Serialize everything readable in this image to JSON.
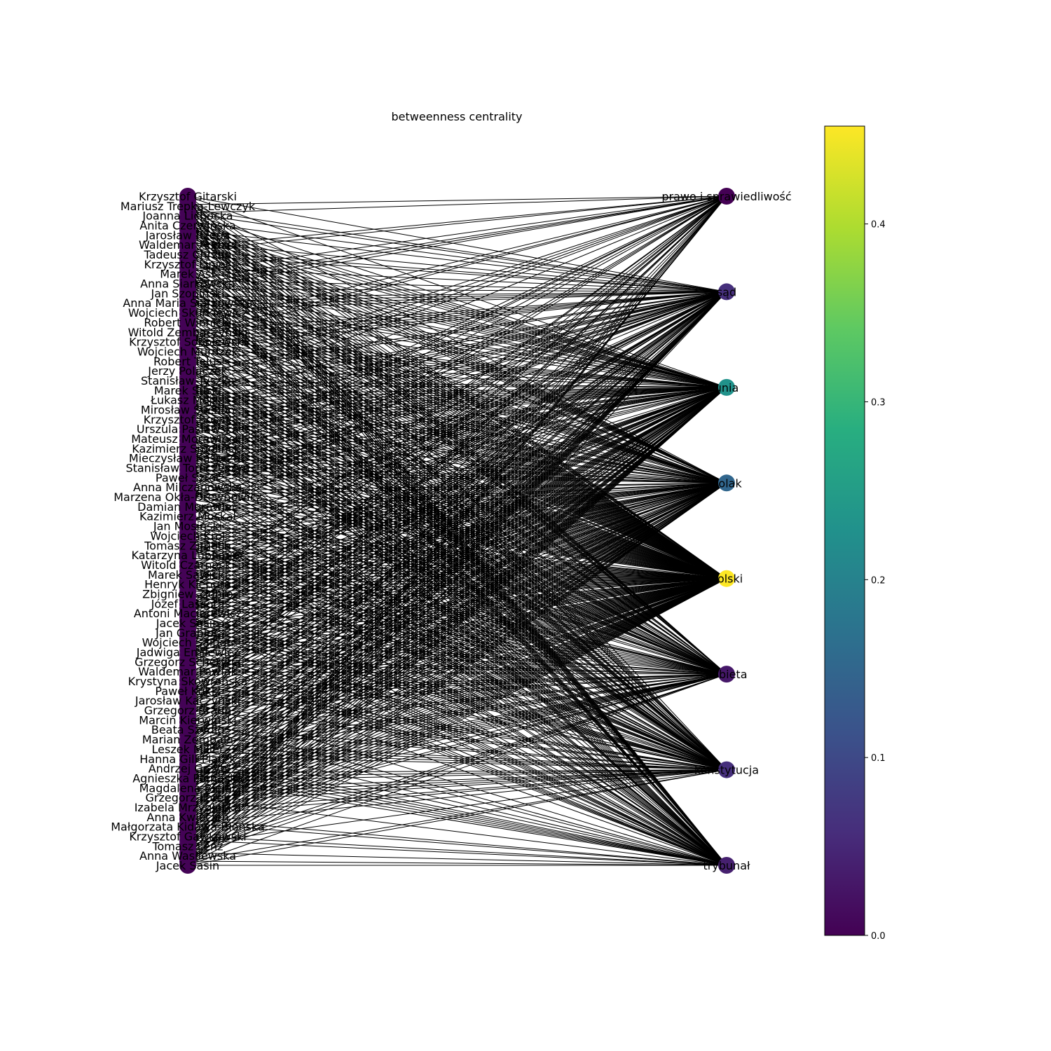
{
  "title": "betweenness centrality",
  "colorbar": {
    "min": 0.0,
    "max": 0.455,
    "ticks": [
      0.0,
      0.1,
      0.2,
      0.3,
      0.4
    ],
    "tick_labels": [
      "0.0",
      "0.1",
      "0.2",
      "0.3",
      "0.4"
    ],
    "colormap": "viridis",
    "stops": [
      "#440154",
      "#472d7b",
      "#3b528b",
      "#2c728e",
      "#21918c",
      "#28ae80",
      "#5ec962",
      "#addc30",
      "#fde725"
    ]
  },
  "topic_nodes": [
    {
      "label": "prawo i sprawiedliwość",
      "value": 0.0
    },
    {
      "label": "sąd",
      "value": 0.06
    },
    {
      "label": "unia",
      "value": 0.23
    },
    {
      "label": "polak",
      "value": 0.15
    },
    {
      "label": "polski",
      "value": 0.455
    },
    {
      "label": "kobieta",
      "value": 0.03
    },
    {
      "label": "konstytucja",
      "value": 0.06
    },
    {
      "label": "trybunał",
      "value": 0.04
    }
  ],
  "person_nodes_visible_labels": [
    "Krzysztof Gitarski",
    "Mariusz Trepka-Lewczyk",
    "Joanna Lichocka",
    "Anita Czerwińska",
    "Jarosław Rzepa",
    "Waldemar Andzel",
    "Tadeusz Chrzan",
    "Krzysztof Lipiec",
    "Marek Ast",
    "Anna Siarkowska",
    "Jan Szopiński",
    "Anna Maria Siarkowska",
    "Wojciech Skurkiewicz",
    "Robert Winnicki",
    "Witold Zembaczyński",
    "Krzysztof Sobolewski",
    "Wojciech Murdzek",
    "Robert Telus",
    "Jerzy Polaczek",
    "Stanisław Tyszka",
    "Marek Suski",
    "Łukasz Mejza",
    "Mirosław Suchoń",
    "Krzysztof Bosak",
    "Urszula Pasławska",
    "Mateusz Morawiecki",
    "Kazimierz Smoliński",
    "Mieczysław Kasprzak",
    "Stanisław Tomczyszyn",
    "Paweł Szrot",
    "Anna Milczanowska",
    "Marzena Okła-Drewnowicz",
    "Damian Murawiec",
    "Kazimierz Moskal",
    "Jan Mosiński",
    "Wojciech Król",
    "Tomasz Zimoch",
    "Katarzyna Lubnauer",
    "Witold Czarnecki",
    "Marek Sawicki",
    "Henryk Kiepura",
    "Zbigniew Ziobro",
    "Józef Lassota",
    "Antoni Macierewicz",
    "Jacek Sasin",
    "Jan Grabiec",
    "Wojciech Saługa",
    "Jadwiga Emilewicz",
    "Grzegorz Schetyna",
    "Waldemar Pawlak",
    "Krystyna Skowrońska",
    "Paweł Kukiz",
    "Jarosław Kaczyński",
    "Grzegorz Braun",
    "Marcin Kierwiński",
    "Beata Szydło",
    "Marian Zembala",
    "Leszek Miller",
    "Hanna Gill-Piątek",
    "Andrzej Grzyb",
    "Agnieszka Pomaska",
    "Magdalena Biejat",
    "Grzegorz Lorek",
    "Izabela Mrzygłocka",
    "Anna Kwiecień",
    "Małgorzata Kidawa-Błońska",
    "Krzysztof Gawkowski",
    "Tomasz Lenz",
    "Anna Wasilewska",
    "Jacek Sasin"
  ]
}
